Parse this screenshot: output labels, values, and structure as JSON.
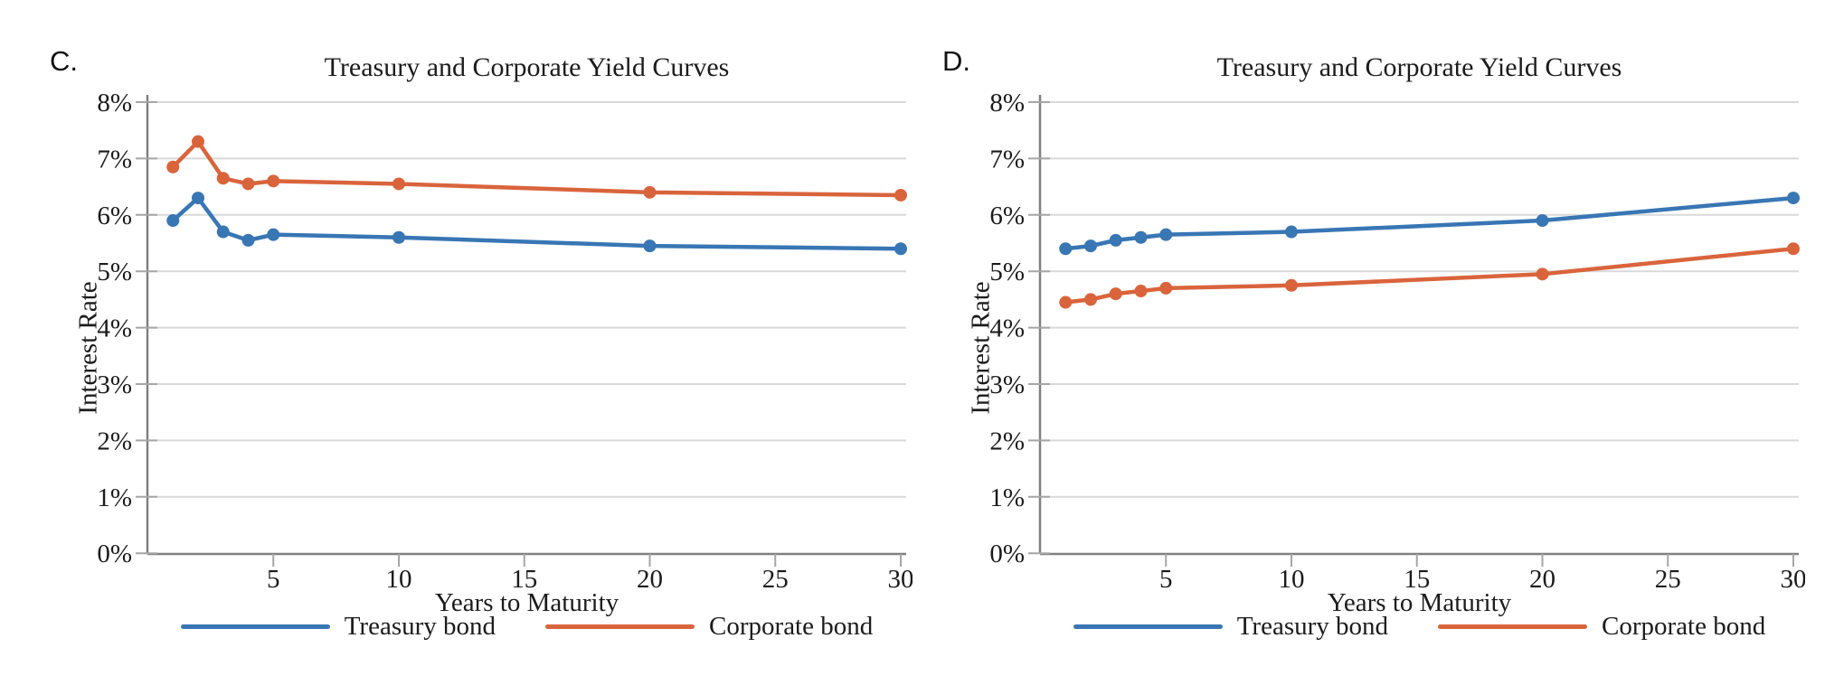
{
  "page": {
    "background": "#ffffff"
  },
  "colors": {
    "treasury_blue": "#3876b4",
    "corporate_orange": "#d9643c",
    "gridline": "#d9d9d9",
    "axis": "#808080",
    "tick": "#a6a6a6",
    "text": "#1a1a1a"
  },
  "chart_data": [
    {
      "type": "line",
      "panel_label": "C.",
      "title": "Treasury and Corporate Yield Curves",
      "xlabel": "Years to Maturity",
      "ylabel": "Interest Rate",
      "x": [
        1,
        2,
        3,
        4,
        5,
        10,
        20,
        30
      ],
      "xticks": [
        5,
        10,
        15,
        20,
        25,
        30
      ],
      "yticks": [
        "0%",
        "1%",
        "2%",
        "3%",
        "4%",
        "5%",
        "6%",
        "7%",
        "8%"
      ],
      "ylim": [
        0,
        8
      ],
      "xlim": [
        0,
        30.3
      ],
      "grid": true,
      "legend_position": "bottom",
      "series": [
        {
          "name": "Treasury bond",
          "color": "#3876b4",
          "values": [
            5.9,
            6.3,
            5.7,
            5.55,
            5.65,
            5.6,
            5.45,
            5.4
          ]
        },
        {
          "name": "Corporate bond",
          "color": "#d9643c",
          "values": [
            6.85,
            7.3,
            6.65,
            6.55,
            6.6,
            6.55,
            6.4,
            6.35
          ]
        }
      ]
    },
    {
      "type": "line",
      "panel_label": "D.",
      "title": "Treasury and Corporate Yield Curves",
      "xlabel": "Years to Maturity",
      "ylabel": "Interest Rate",
      "x": [
        1,
        2,
        3,
        4,
        5,
        10,
        20,
        30
      ],
      "xticks": [
        5,
        10,
        15,
        20,
        25,
        30
      ],
      "yticks": [
        "0%",
        "1%",
        "2%",
        "3%",
        "4%",
        "5%",
        "6%",
        "7%",
        "8%"
      ],
      "ylim": [
        0,
        8
      ],
      "xlim": [
        0,
        30.3
      ],
      "grid": true,
      "legend_position": "bottom",
      "series": [
        {
          "name": "Treasury bond",
          "color": "#3876b4",
          "values": [
            5.4,
            5.45,
            5.55,
            5.6,
            5.65,
            5.7,
            5.9,
            6.3
          ]
        },
        {
          "name": "Corporate bond",
          "color": "#d9643c",
          "values": [
            4.45,
            4.5,
            4.6,
            4.65,
            4.7,
            4.75,
            4.95,
            5.4
          ]
        }
      ]
    }
  ]
}
